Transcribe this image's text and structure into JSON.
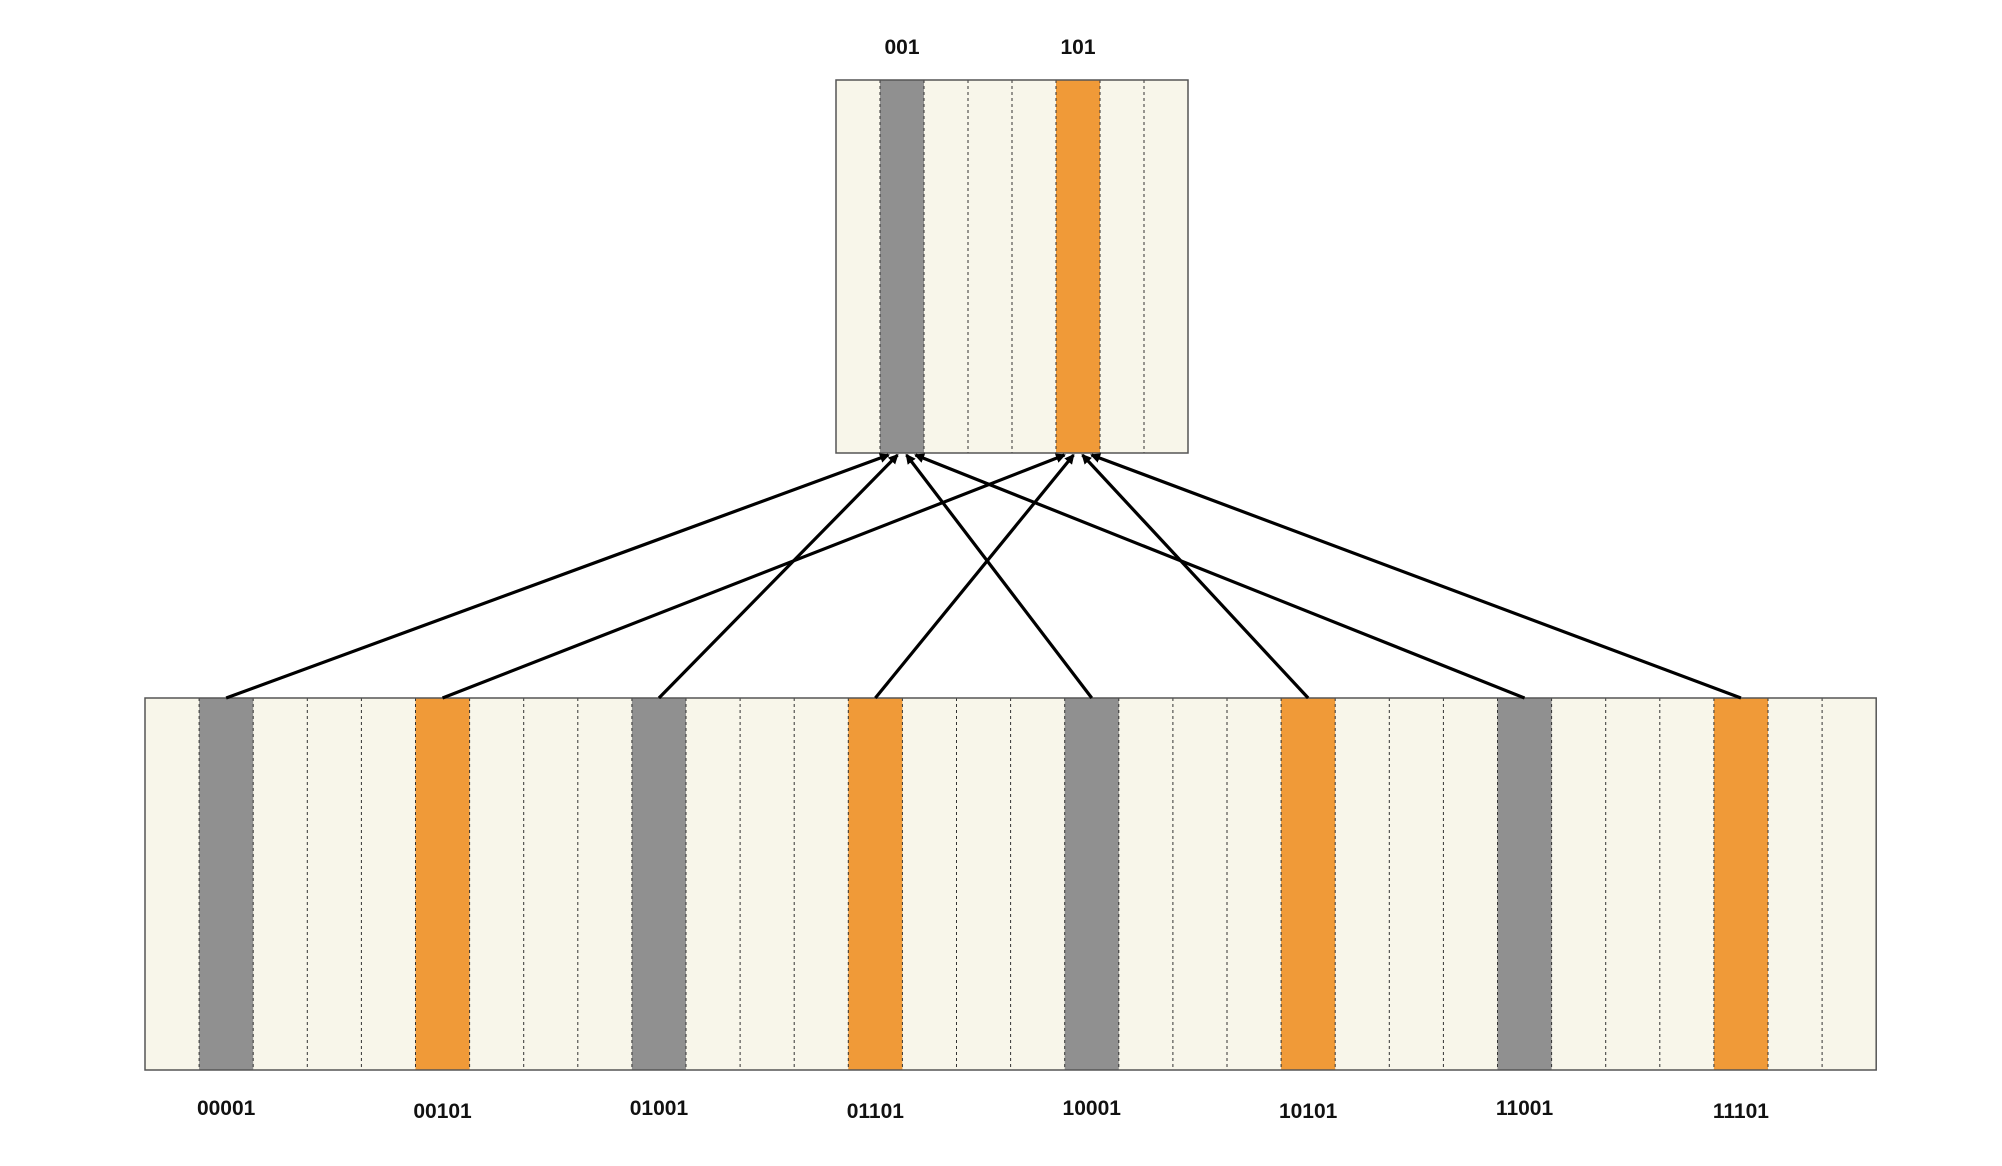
{
  "colors": {
    "background": "#ffffff",
    "cell_fill": "#f8f6ea",
    "gray": "#909090",
    "orange": "#f09a38",
    "border": "#555555",
    "divider": "#333333",
    "arrow": "#000000"
  },
  "small_table": {
    "cell_count": 8,
    "highlighted": [
      {
        "index": 1,
        "color": "gray",
        "label": "001"
      },
      {
        "index": 5,
        "color": "orange",
        "label": "101"
      }
    ]
  },
  "large_table": {
    "cell_count": 32,
    "highlighted": [
      {
        "index": 1,
        "color": "gray",
        "label": "00001"
      },
      {
        "index": 5,
        "color": "orange",
        "label": "00101"
      },
      {
        "index": 9,
        "color": "gray",
        "label": "01001"
      },
      {
        "index": 13,
        "color": "orange",
        "label": "01101"
      },
      {
        "index": 17,
        "color": "gray",
        "label": "10001"
      },
      {
        "index": 21,
        "color": "orange",
        "label": "10101"
      },
      {
        "index": 25,
        "color": "gray",
        "label": "11001"
      },
      {
        "index": 29,
        "color": "orange",
        "label": "11101"
      }
    ]
  },
  "arrows": [
    {
      "from": "00001",
      "to": "001"
    },
    {
      "from": "00101",
      "to": "101"
    },
    {
      "from": "01001",
      "to": "001"
    },
    {
      "from": "01101",
      "to": "101"
    },
    {
      "from": "10001",
      "to": "001"
    },
    {
      "from": "10101",
      "to": "101"
    },
    {
      "from": "11001",
      "to": "001"
    },
    {
      "from": "11101",
      "to": "101"
    }
  ]
}
